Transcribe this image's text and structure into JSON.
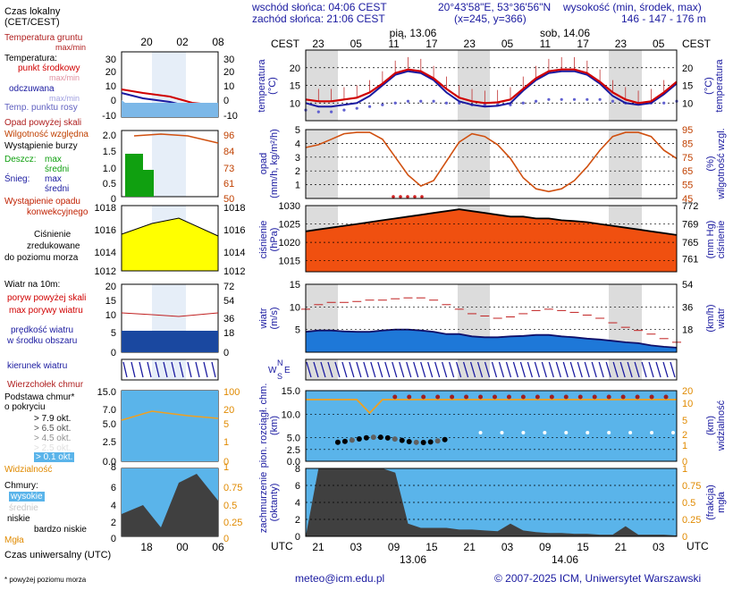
{
  "header": {
    "sunrise": "wschód słońca: 04:06 CEST",
    "sunset": "zachód słońca: 21:06 CEST",
    "coords": "20°43'58\"E, 53°36'56\"N",
    "grid": "(x=245, y=366)",
    "elev_title": "wysokość (min, środek, max)",
    "elev_values": "146 - 147 - 176 m"
  },
  "legend": {
    "local_time": "Czas lokalny",
    "local_time2": "(CET/CEST)",
    "ground_temp": "Temperatura gruntu",
    "max_min": "max/min",
    "temp": "Temperatura:",
    "mid_point": "punkt środkowy",
    "max_min2": "max/min",
    "felt": "odczuwana",
    "max_min3": "max/min",
    "dew": "Temp. punktu rosy",
    "precip_over": "Opad powyżej skali",
    "humidity": "Wilgotność względna",
    "storm": "Wystąpienie burzy",
    "rain": "Deszcz:",
    "rain_max": "max",
    "rain_mean": "średni",
    "snow": "Śnieg:",
    "snow_max": "max",
    "snow_mean": "średni",
    "conv1": "Wystąpienie opadu",
    "conv2": "konwekcyjnego",
    "pressure1": "Ciśnienie",
    "pressure2": "zredukowane",
    "pressure3": "do poziomu morza",
    "wind": "Wiatr na 10m:",
    "gust_over": "poryw powyżej skali",
    "gust_max": "max porywy wiatru",
    "wspeed1": "prędkość wiatru",
    "wspeed2": "w środku obszaru",
    "wdir": "kierunek wiatru",
    "cloudtop": "Wierzchołek chmur",
    "cloudbase1": "Podstawa chmur*",
    "cloudbase2": "o pokryciu",
    "okt79": "> 7.9 okt.",
    "okt65": "> 6.5 okt.",
    "okt45": "> 4.5 okt.",
    "okt25": "> 2.5 okt.",
    "okt01": "> 0.1 okt.",
    "visibility": "Widzialność",
    "clouds": "Chmury:",
    "high": "wysokie",
    "mid": "średnie",
    "low": "niskie",
    "vlow": "bardzo niskie",
    "fog": "Mgła",
    "utc": "Czas uniwersalny (UTC)",
    "footnote": "* powyżej poziomu morza"
  },
  "axis_titles": {
    "temp": "temperatura",
    "temp_unit": "(°C)",
    "precip": "opad",
    "precip_unit": "(mm/h, kg/m²/h)",
    "humidity": "wilgotność wzgl.",
    "humidity_unit": "(%)",
    "pressure": "ciśnienie",
    "pressure_unit": "(hPa)",
    "pressure_unit2": "(mm Hg)",
    "pressure_r": "ciśnienie",
    "wind": "wiatr",
    "wind_unit": "(m/s)",
    "wind_unit2": "(km/h)",
    "wind_r": "wiatr",
    "cloud1": "pion. rozciągł. chm.",
    "cloud_unit": "(km)",
    "vis": "widzialność",
    "vis_unit": "(km)",
    "cov1": "zachmurzenie",
    "cov_unit": "(oktanty)",
    "fog1": "mgła",
    "fog_unit": "(frakcja)"
  },
  "time": {
    "cest": "CEST",
    "utc": "UTC",
    "top_ticks": [
      "23",
      "05",
      "11",
      "17",
      "23",
      "05",
      "11",
      "17",
      "23",
      "05"
    ],
    "bottom_ticks": [
      "21",
      "03",
      "09",
      "15",
      "21",
      "03",
      "09",
      "15",
      "21",
      "03"
    ],
    "day1": "pią, 13.06",
    "day2": "sob, 14.06",
    "date1": "13.06",
    "date2": "14.06",
    "mini_top": [
      "20",
      "02",
      "08"
    ],
    "mini_bottom": [
      "18",
      "00",
      "06"
    ]
  },
  "footer": {
    "email": "meteo@icm.edu.pl",
    "copyright": "© 2007-2025 ICM, Uniwersytet Warszawski"
  },
  "chart_data": [
    {
      "type": "line",
      "name": "temperatura",
      "ylim": [
        5,
        25
      ],
      "ticks": [
        10,
        15,
        20
      ],
      "series": [
        {
          "name": "punkt środkowy",
          "values": [
            11,
            10.5,
            10.5,
            11,
            11.5,
            13,
            15.5,
            18.5,
            19.5,
            19,
            17,
            14,
            11.5,
            10.5,
            10,
            10.2,
            11,
            14,
            17,
            19,
            19.5,
            19.5,
            18.5,
            16,
            13,
            11,
            10,
            10.5,
            13,
            16
          ]
        },
        {
          "name": "odczuwana",
          "values": [
            10,
            9,
            9,
            9.5,
            10,
            12,
            15,
            18,
            19,
            18.5,
            16.5,
            13,
            10.5,
            9.5,
            9,
            9.2,
            10,
            13.5,
            16.5,
            18.5,
            19,
            19,
            18,
            15.5,
            12,
            10,
            9.5,
            10,
            12.5,
            15.5
          ]
        },
        {
          "name": "Temp. punktu rosy",
          "values": [
            8,
            7.5,
            7.5,
            8,
            8.5,
            9,
            9.5,
            10,
            10.5,
            10.5,
            10.5,
            10,
            10,
            9.5,
            9.5,
            9.5,
            9.5,
            10,
            10.5,
            11,
            11,
            11,
            11,
            11,
            10.5,
            10,
            10,
            10,
            10,
            10.5
          ]
        }
      ]
    },
    {
      "type": "line",
      "name": "wilgotność",
      "ylim": [
        45,
        95
      ],
      "ticks": [
        45,
        55,
        65,
        75,
        85,
        95
      ],
      "values": [
        82,
        84,
        88,
        92,
        93,
        93,
        88,
        75,
        62,
        54,
        58,
        72,
        86,
        92,
        90,
        84,
        74,
        60,
        52,
        50,
        52,
        58,
        68,
        80,
        90,
        93,
        93,
        90,
        80,
        74
      ]
    },
    {
      "type": "area",
      "name": "ciśnienie",
      "ylim": [
        1012,
        1030
      ],
      "ticks": [
        1015,
        1020,
        1025,
        1030
      ],
      "ticks_r": [
        761,
        765,
        769,
        772
      ],
      "values": [
        1023,
        1023.5,
        1024,
        1024.5,
        1025,
        1025.5,
        1026,
        1026.5,
        1027,
        1027.5,
        1028,
        1028.5,
        1029,
        1028.5,
        1028,
        1027.5,
        1027,
        1027,
        1026.5,
        1026.5,
        1026,
        1025.8,
        1025.5,
        1025,
        1024.5,
        1024,
        1023.5,
        1023,
        1022.5,
        1022
      ]
    },
    {
      "type": "line",
      "name": "wiatr",
      "ylim": [
        0,
        15
      ],
      "ticks": [
        5,
        10,
        15
      ],
      "ticks_r": [
        18,
        36,
        54
      ],
      "series": [
        {
          "name": "prędkość",
          "values": [
            4.5,
            4.8,
            4.8,
            4.6,
            4.5,
            4.5,
            4.8,
            5,
            5,
            4.8,
            4.5,
            4,
            4,
            3.5,
            3.3,
            3.3,
            3.5,
            3.6,
            3.8,
            3.8,
            3.5,
            3.3,
            3,
            2.8,
            2.5,
            2.2,
            2,
            1.5,
            1.2,
            1
          ]
        },
        {
          "name": "max porywy",
          "values": [
            9.5,
            10.5,
            11,
            11,
            11.2,
            11.5,
            11.5,
            11.8,
            12,
            12,
            11.5,
            10.5,
            9.5,
            8.5,
            8,
            7.5,
            7.8,
            8.5,
            9.2,
            9.5,
            9.2,
            8.8,
            8.2,
            7.5,
            6.5,
            5.5,
            4.8,
            4,
            3,
            2.2
          ]
        }
      ]
    },
    {
      "type": "line",
      "name": "widzialność",
      "ylim": [
        0,
        20
      ],
      "ticks": [
        0,
        1,
        2,
        5,
        10,
        20
      ],
      "values": [
        20,
        20,
        20,
        20,
        20,
        10,
        20,
        20,
        20,
        20,
        20,
        20,
        20,
        20,
        20,
        20,
        20,
        20,
        20,
        20,
        20,
        20,
        20,
        20,
        20,
        20,
        20,
        20,
        20,
        20
      ]
    },
    {
      "type": "area",
      "name": "zachmurzenie",
      "ylim": [
        0,
        8
      ],
      "ticks": [
        0,
        2,
        4,
        6,
        8
      ],
      "ticks_r": [
        0,
        0.25,
        0.5,
        0.75,
        1
      ],
      "values": [
        0,
        8,
        8,
        8,
        8,
        8,
        8,
        7.5,
        1.5,
        1,
        1,
        1,
        0.8,
        0.8,
        0.7,
        0.6,
        1.5,
        0.7,
        0.5,
        0.4,
        0.4,
        0.3,
        0.3,
        0.2,
        0.2,
        1.2,
        0.2,
        0.2,
        0.2,
        0.1
      ]
    }
  ]
}
